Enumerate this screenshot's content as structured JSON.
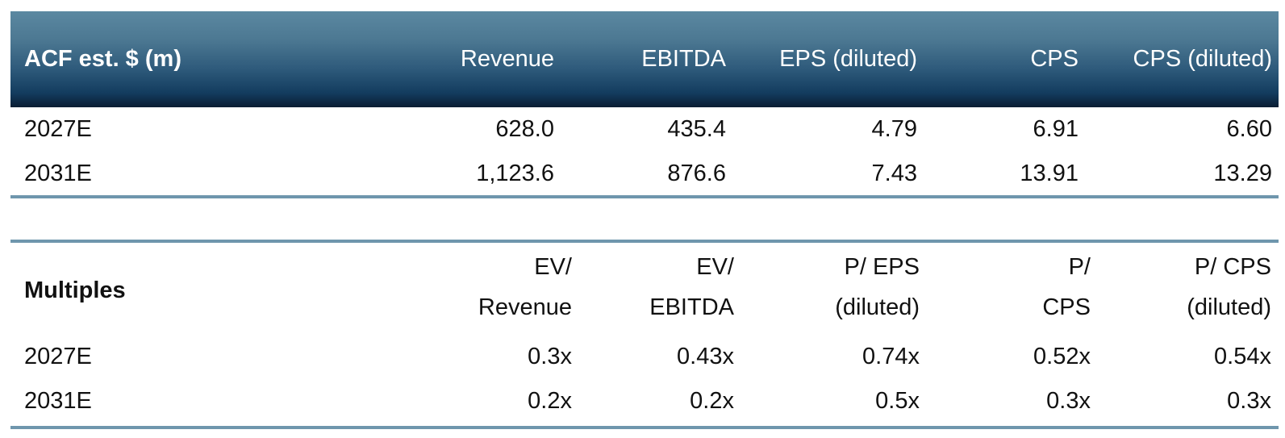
{
  "colors": {
    "header_gradient_top": "#5B88A1",
    "header_gradient_bottom": "#0A1D33",
    "rule_line": "#6F96AD",
    "header_text": "#FFFFFF",
    "body_text": "#111111",
    "background": "#FFFFFF"
  },
  "table1": {
    "title": "ACF est. $ (m)",
    "columns": [
      "Revenue",
      "EBITDA",
      "EPS (diluted)",
      "CPS",
      "CPS (diluted)"
    ],
    "rows": [
      {
        "label": "2027E",
        "values": [
          "628.0",
          "435.4",
          "4.79",
          "6.91",
          "6.60"
        ]
      },
      {
        "label": "2031E",
        "values": [
          "1,123.6",
          "876.6",
          "7.43",
          "13.91",
          "13.29"
        ]
      }
    ]
  },
  "table2": {
    "title": "Multiples",
    "columns": [
      {
        "line1": "EV/",
        "line2": "Revenue"
      },
      {
        "line1": "EV/",
        "line2": "EBITDA"
      },
      {
        "line1": "P/ EPS",
        "line2": "(diluted)"
      },
      {
        "line1": "P/",
        "line2": "CPS"
      },
      {
        "line1": "P/ CPS",
        "line2": "(diluted)"
      }
    ],
    "rows": [
      {
        "label": "2027E",
        "values": [
          "0.3x",
          "0.43x",
          "0.74x",
          "0.52x",
          "0.54x"
        ]
      },
      {
        "label": "2031E",
        "values": [
          "0.2x",
          "0.2x",
          "0.5x",
          "0.3x",
          "0.3x"
        ]
      }
    ]
  }
}
